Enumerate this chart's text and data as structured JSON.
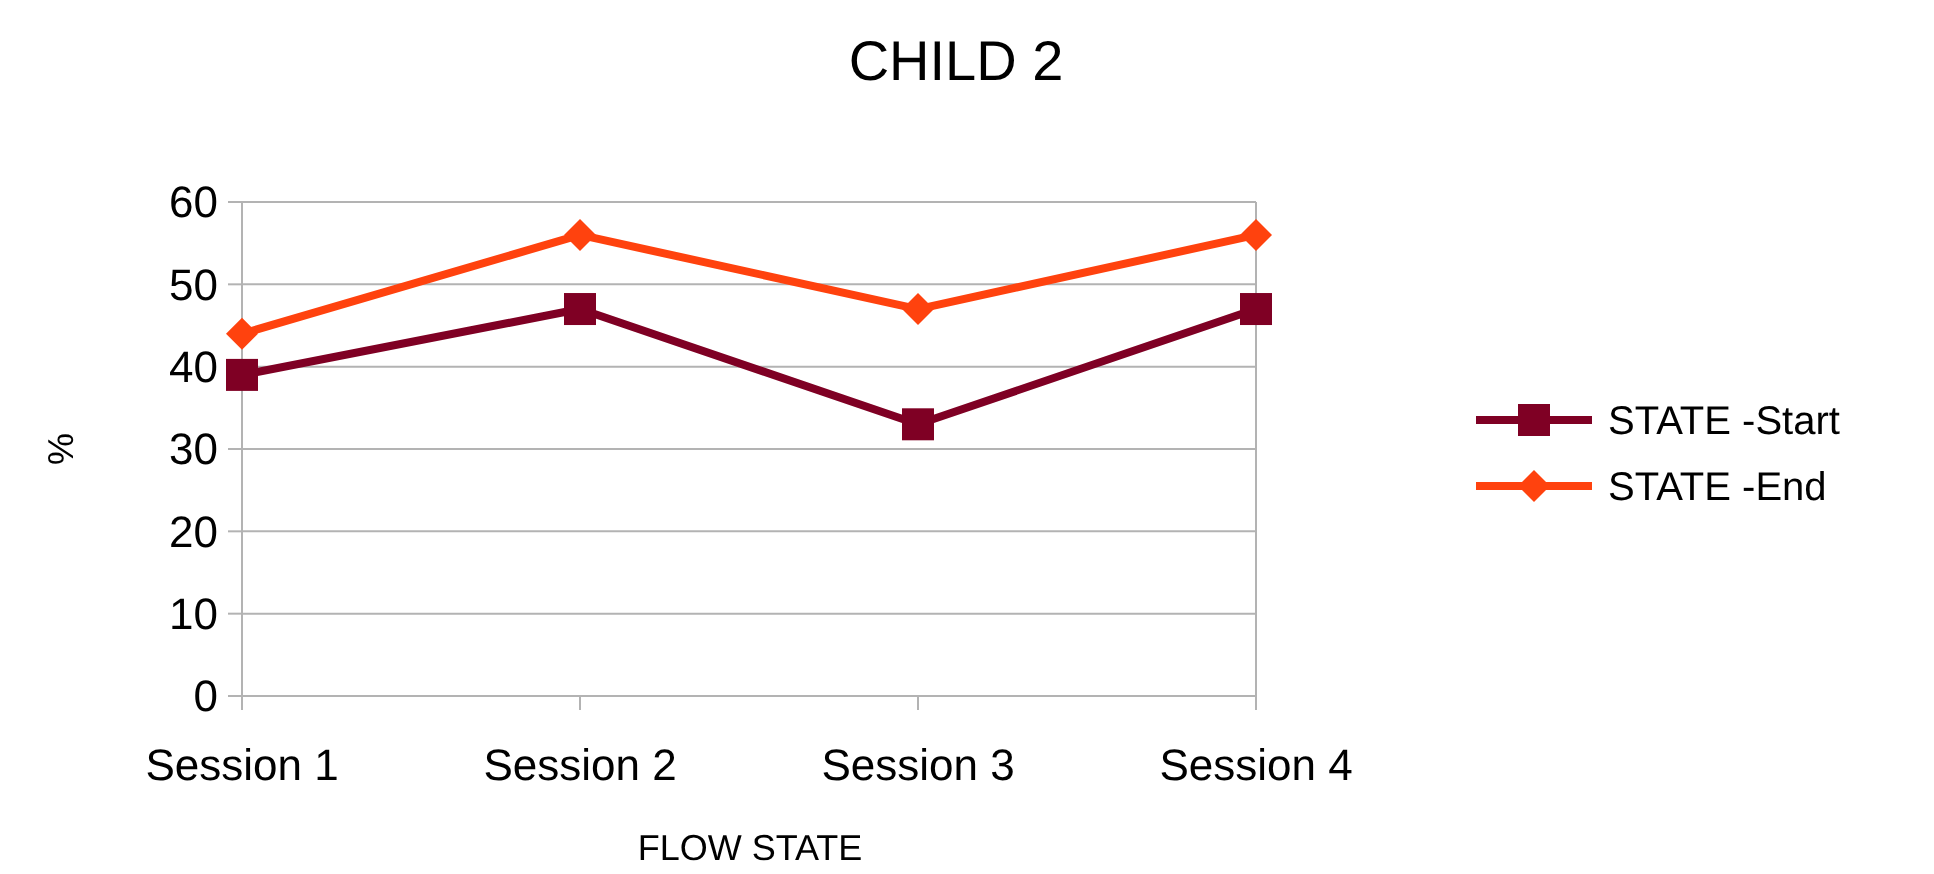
{
  "chart_data": {
    "type": "line",
    "title": "CHILD 2",
    "xlabel": "FLOW STATE",
    "ylabel": "%",
    "categories": [
      "Session 1",
      "Session 2",
      "Session 3",
      "Session 4"
    ],
    "series": [
      {
        "name": "STATE -Start",
        "color": "#7f0024",
        "values": [
          39,
          47,
          33,
          47
        ],
        "marker": "square"
      },
      {
        "name": "STATE -End",
        "color": "#ff420e",
        "values": [
          44,
          56,
          47,
          56
        ],
        "marker": "diamond"
      }
    ],
    "ylim": [
      0,
      60
    ],
    "yticks": [
      0,
      10,
      20,
      30,
      40,
      50,
      60
    ],
    "grid": "y",
    "legend": "right",
    "line_style": "solid"
  }
}
